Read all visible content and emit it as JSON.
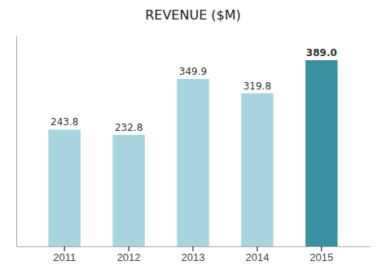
{
  "chart_data": {
    "type": "bar",
    "title": "REVENUE ($M)",
    "categories": [
      "2011",
      "2012",
      "2013",
      "2014",
      "2015"
    ],
    "values": [
      243.8,
      232.8,
      349.9,
      319.8,
      389.0
    ],
    "value_labels": [
      "243.8",
      "232.8",
      "349.9",
      "319.8",
      "389.0"
    ],
    "colors": [
      "#a8d4e0",
      "#a8d4e0",
      "#a8d4e0",
      "#a8d4e0",
      "#3a8fa0"
    ],
    "ylim": [
      0,
      440
    ],
    "data_labels": true,
    "tick_labels": "x"
  }
}
